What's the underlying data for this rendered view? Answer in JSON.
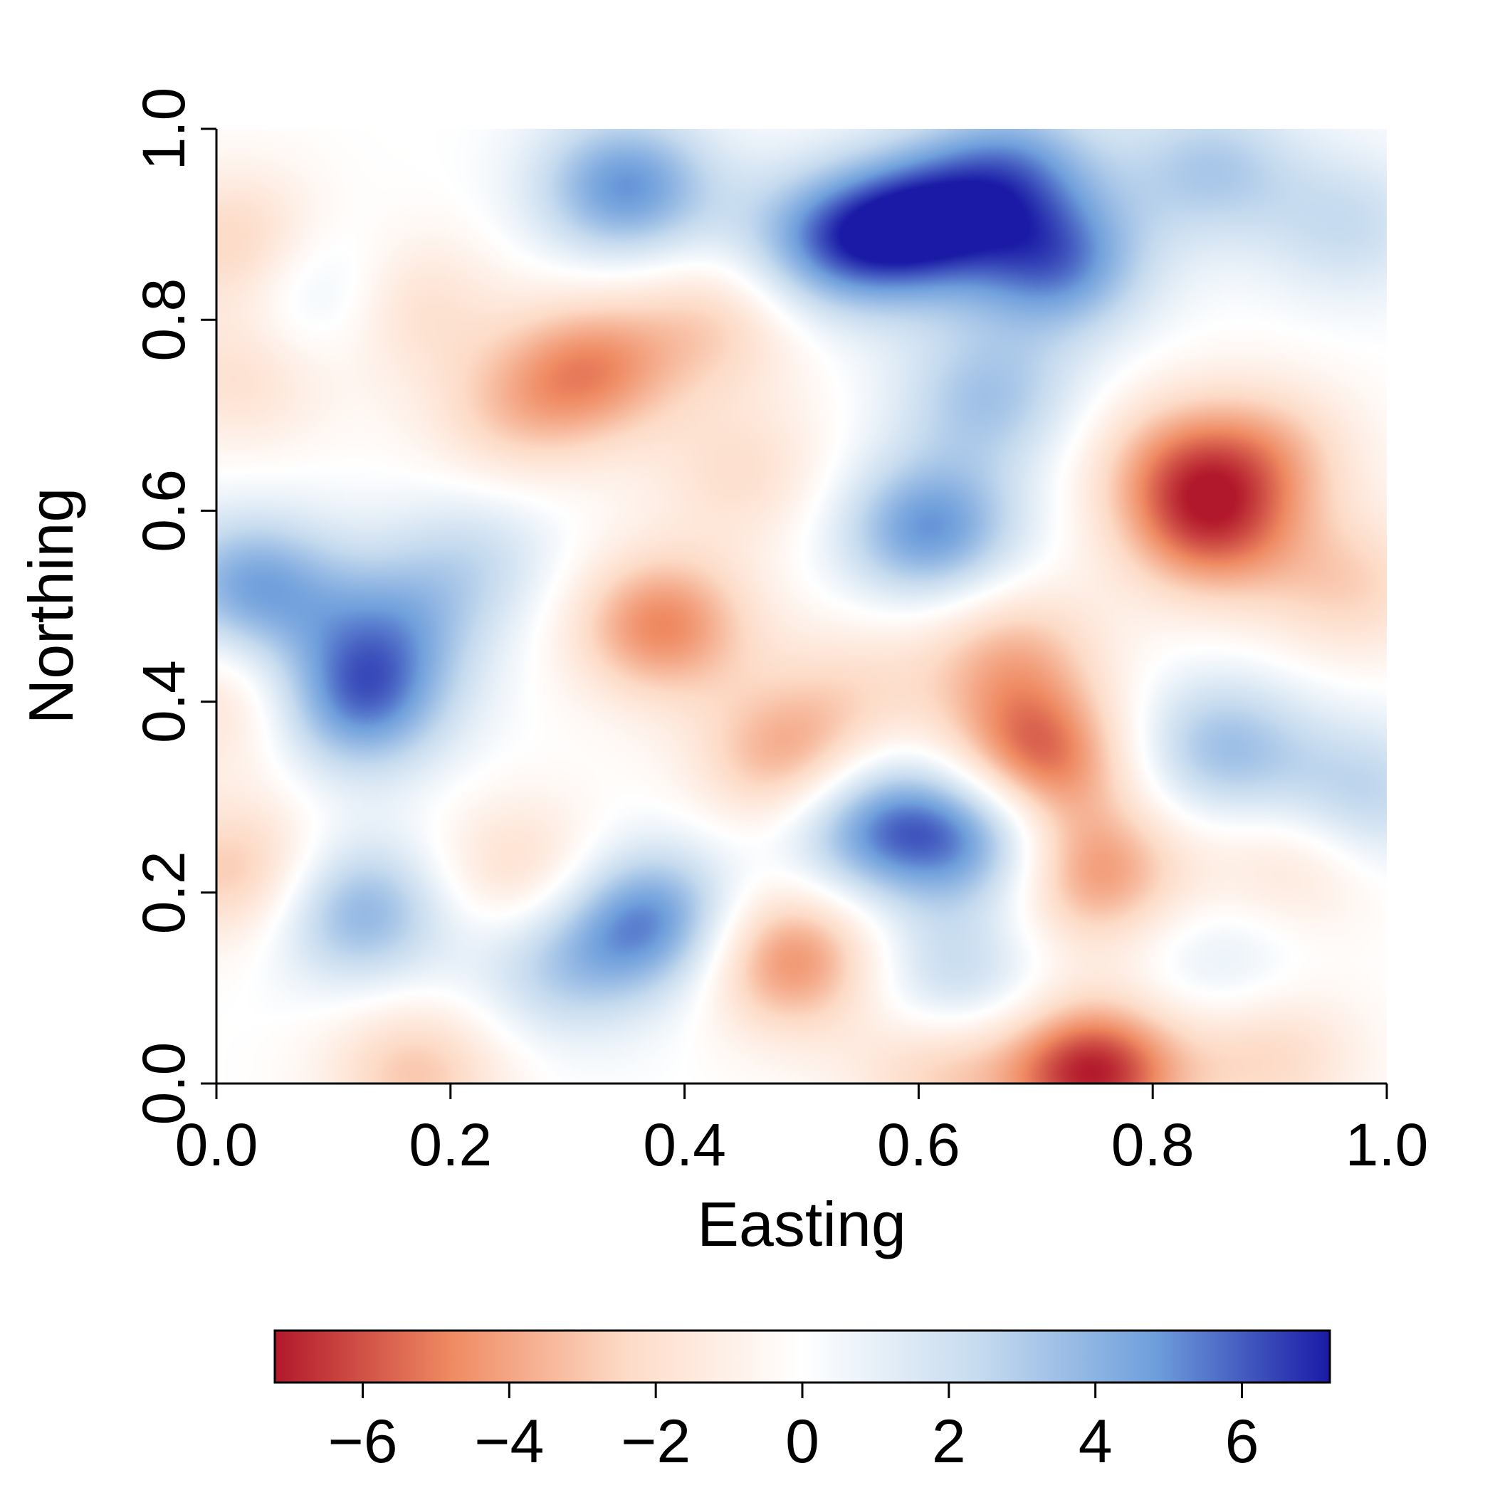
{
  "chart_data": {
    "type": "heatmap",
    "xlabel": "Easting",
    "ylabel": "Northing",
    "xlim": [
      0.0,
      1.0
    ],
    "ylim": [
      0.0,
      1.0
    ],
    "x_ticks": [
      "0.0",
      "0.2",
      "0.4",
      "0.6",
      "0.8",
      "1.0"
    ],
    "y_ticks": [
      "0.0",
      "0.2",
      "0.4",
      "0.6",
      "0.8",
      "1.0"
    ],
    "grid": false,
    "colorbar": {
      "position": "bottom",
      "range": [
        -7.2,
        7.2
      ],
      "ticks": [
        "−6",
        "−4",
        "−2",
        "0",
        "2",
        "4",
        "6"
      ],
      "tick_values": [
        -6,
        -4,
        -2,
        0,
        2,
        4,
        6
      ],
      "colors": [
        "#b2182b",
        "#ef8a62",
        "#fddbc7",
        "#ffffff",
        "#c6dbef",
        "#6f9fdc",
        "#1a1aa6"
      ]
    },
    "peaks": [
      {
        "x": 0.35,
        "y": 0.94,
        "value": 5.0
      },
      {
        "x": 0.6,
        "y": 0.9,
        "value": 6.2
      },
      {
        "x": 0.52,
        "y": 0.88,
        "value": 4.5
      },
      {
        "x": 0.72,
        "y": 0.86,
        "value": 5.0
      },
      {
        "x": 0.68,
        "y": 0.96,
        "value": 4.2
      },
      {
        "x": 0.85,
        "y": 0.96,
        "value": 3.0
      },
      {
        "x": 0.97,
        "y": 0.9,
        "value": 2.2
      },
      {
        "x": 0.1,
        "y": 0.83,
        "value": 3.2
      },
      {
        "x": 0.61,
        "y": 0.58,
        "value": 5.0
      },
      {
        "x": 0.66,
        "y": 0.72,
        "value": 3.2
      },
      {
        "x": 0.03,
        "y": 0.52,
        "value": 4.5
      },
      {
        "x": 0.12,
        "y": 0.4,
        "value": 5.2
      },
      {
        "x": 0.15,
        "y": 0.48,
        "value": 3.0
      },
      {
        "x": 0.22,
        "y": 0.55,
        "value": 2.0
      },
      {
        "x": 0.12,
        "y": 0.18,
        "value": 4.2
      },
      {
        "x": 0.37,
        "y": 0.17,
        "value": 5.2
      },
      {
        "x": 0.29,
        "y": 0.12,
        "value": 2.5
      },
      {
        "x": 0.56,
        "y": 0.27,
        "value": 4.8
      },
      {
        "x": 0.65,
        "y": 0.26,
        "value": 4.8
      },
      {
        "x": 0.63,
        "y": 0.1,
        "value": 3.0
      },
      {
        "x": 0.86,
        "y": 0.35,
        "value": 3.5
      },
      {
        "x": 0.98,
        "y": 0.3,
        "value": 2.8
      },
      {
        "x": 0.86,
        "y": 0.12,
        "value": 1.6
      },
      {
        "x": 0.02,
        "y": 0.88,
        "value": -2.8
      },
      {
        "x": 0.15,
        "y": 0.82,
        "value": -3.2
      },
      {
        "x": 0.32,
        "y": 0.75,
        "value": -4.2
      },
      {
        "x": 0.43,
        "y": 0.8,
        "value": -2.5
      },
      {
        "x": 0.25,
        "y": 0.7,
        "value": -2.2
      },
      {
        "x": 0.02,
        "y": 0.74,
        "value": -2.0
      },
      {
        "x": 0.45,
        "y": 0.64,
        "value": -2.0
      },
      {
        "x": 0.38,
        "y": 0.48,
        "value": -4.8
      },
      {
        "x": 0.49,
        "y": 0.34,
        "value": -4.0
      },
      {
        "x": 0.7,
        "y": 0.34,
        "value": -5.8
      },
      {
        "x": 0.68,
        "y": 0.45,
        "value": -3.2
      },
      {
        "x": 0.75,
        "y": 0.22,
        "value": -4.5
      },
      {
        "x": 0.49,
        "y": 0.13,
        "value": -4.8
      },
      {
        "x": 0.75,
        "y": 0.01,
        "value": -7.0
      },
      {
        "x": 0.62,
        "y": 0.02,
        "value": -3.0
      },
      {
        "x": 0.9,
        "y": 0.03,
        "value": -2.5
      },
      {
        "x": 0.17,
        "y": 0.01,
        "value": -3.0
      },
      {
        "x": 0.85,
        "y": 0.58,
        "value": -4.8
      },
      {
        "x": 0.82,
        "y": 0.65,
        "value": -3.2
      },
      {
        "x": 0.9,
        "y": 0.66,
        "value": -2.8
      },
      {
        "x": 0.97,
        "y": 0.52,
        "value": -2.5
      },
      {
        "x": 0.02,
        "y": 0.22,
        "value": -3.2
      },
      {
        "x": 0.01,
        "y": 0.4,
        "value": -2.2
      },
      {
        "x": 0.26,
        "y": 0.22,
        "value": -2.5
      },
      {
        "x": 0.92,
        "y": 0.23,
        "value": -2.0
      },
      {
        "x": 0.55,
        "y": 0.42,
        "value": -1.5
      }
    ]
  }
}
